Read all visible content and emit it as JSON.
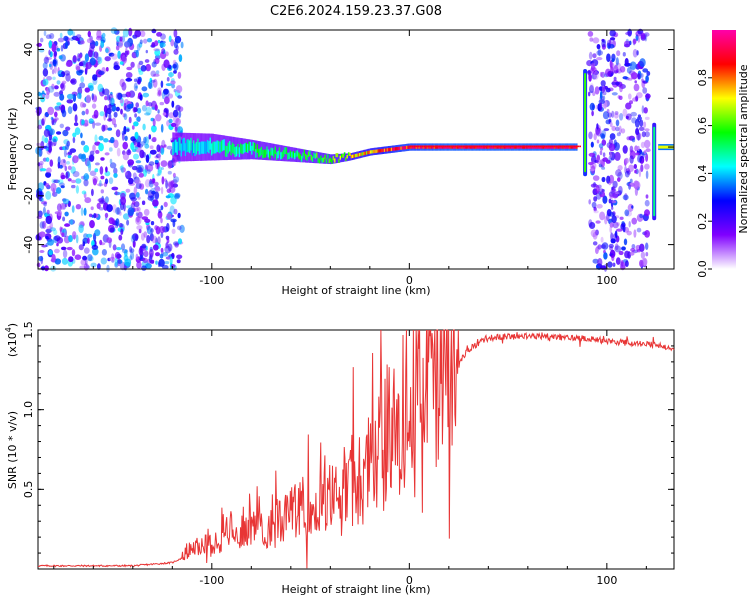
{
  "title": "C2E6.2024.159.23.37.G08",
  "chart_data": [
    {
      "type": "heatmap",
      "xlabel": "Height of straight line (km)",
      "ylabel": "Frequency (Hz)",
      "xlim": [
        -188,
        134
      ],
      "ylim": [
        -50,
        48
      ],
      "xticks": [
        -100,
        0,
        100
      ],
      "xtick_labels": [
        "-100",
        "0",
        "100"
      ],
      "yticks": [
        -40,
        -20,
        0,
        20,
        40
      ],
      "ytick_labels": [
        "-40",
        "-20",
        "0",
        "20",
        "40"
      ],
      "grid": false,
      "colorbar": {
        "label": "Normalized spectral amplitude",
        "range": [
          0,
          1
        ],
        "ticks": [
          0.0,
          0.2,
          0.4,
          0.6,
          0.8
        ],
        "tick_labels": [
          "0.0",
          "0.2",
          "0.4",
          "0.6",
          "0.8"
        ],
        "colors": [
          "#ffffff",
          "#8000ff",
          "#0000ff",
          "#00ffff",
          "#00ff00",
          "#ffff00",
          "#ff0000",
          "#ff00aa"
        ]
      },
      "noise_regions": [
        {
          "x_range": [
            -188,
            -115
          ],
          "y_range": [
            -50,
            48
          ],
          "level": 0.25
        },
        {
          "x_range": [
            91,
            121
          ],
          "y_range": [
            -50,
            48
          ],
          "level": 0.2
        }
      ],
      "ridge": [
        {
          "x": -120,
          "freq": 0,
          "width_hz": 12,
          "level": 0.4
        },
        {
          "x": -100,
          "freq": 0,
          "width_hz": 11,
          "level": 0.45
        },
        {
          "x": -80,
          "freq": -1,
          "width_hz": 8,
          "level": 0.5
        },
        {
          "x": -60,
          "freq": -3,
          "width_hz": 6,
          "level": 0.5
        },
        {
          "x": -40,
          "freq": -5,
          "width_hz": 4,
          "level": 0.6
        },
        {
          "x": -30,
          "freq": -4,
          "width_hz": 3,
          "level": 0.7
        },
        {
          "x": -20,
          "freq": -2,
          "width_hz": 3,
          "level": 0.75
        },
        {
          "x": -10,
          "freq": -1,
          "width_hz": 3,
          "level": 0.85
        },
        {
          "x": 0,
          "freq": 0,
          "width_hz": 3,
          "level": 0.9
        },
        {
          "x": 20,
          "freq": 0,
          "width_hz": 3,
          "level": 0.95
        },
        {
          "x": 50,
          "freq": 0,
          "width_hz": 3,
          "level": 0.95
        },
        {
          "x": 85,
          "freq": 0,
          "width_hz": 3,
          "level": 0.95
        }
      ],
      "bursts": [
        {
          "x": 89,
          "freq_range": [
            -12,
            32
          ],
          "level": 0.6
        },
        {
          "x": 124,
          "freq_range": [
            -30,
            10
          ],
          "level": 0.5
        }
      ],
      "after_segment": {
        "x_range": [
          126,
          134
        ],
        "freq": 0,
        "level": 0.7
      }
    },
    {
      "type": "line",
      "xlabel": "Height of straight line (km)",
      "ylabel": "SNR (10 * v/v)",
      "y_multiplier_label": "(x10",
      "y_multiplier_exp": "4",
      "y_multiplier_close": ")",
      "xlim": [
        -188,
        134
      ],
      "ylim": [
        0,
        1.5
      ],
      "xticks": [
        -100,
        0,
        100
      ],
      "xtick_labels": [
        "-100",
        "0",
        "100"
      ],
      "yticks": [
        0.5,
        1.0,
        1.5
      ],
      "ytick_labels": [
        "0.5",
        "1.0",
        "1.5"
      ],
      "grid": false,
      "line_color": "#e83535",
      "series": [
        {
          "x": [
            -188,
            -160,
            -140,
            -120,
            -110,
            -100,
            -90,
            -80,
            -70,
            -60,
            -50,
            -40,
            -30,
            -20,
            -10,
            0,
            10,
            20,
            30,
            40,
            50,
            60,
            70,
            80,
            90,
            100,
            110,
            120,
            134
          ],
          "values": [
            0.02,
            0.02,
            0.02,
            0.04,
            0.1,
            0.15,
            0.2,
            0.22,
            0.25,
            0.28,
            0.32,
            0.36,
            0.45,
            0.55,
            0.7,
            0.85,
            1.0,
            1.2,
            1.38,
            1.45,
            1.46,
            1.46,
            1.46,
            1.45,
            1.45,
            1.43,
            1.42,
            1.41,
            1.39
          ]
        }
      ]
    }
  ]
}
